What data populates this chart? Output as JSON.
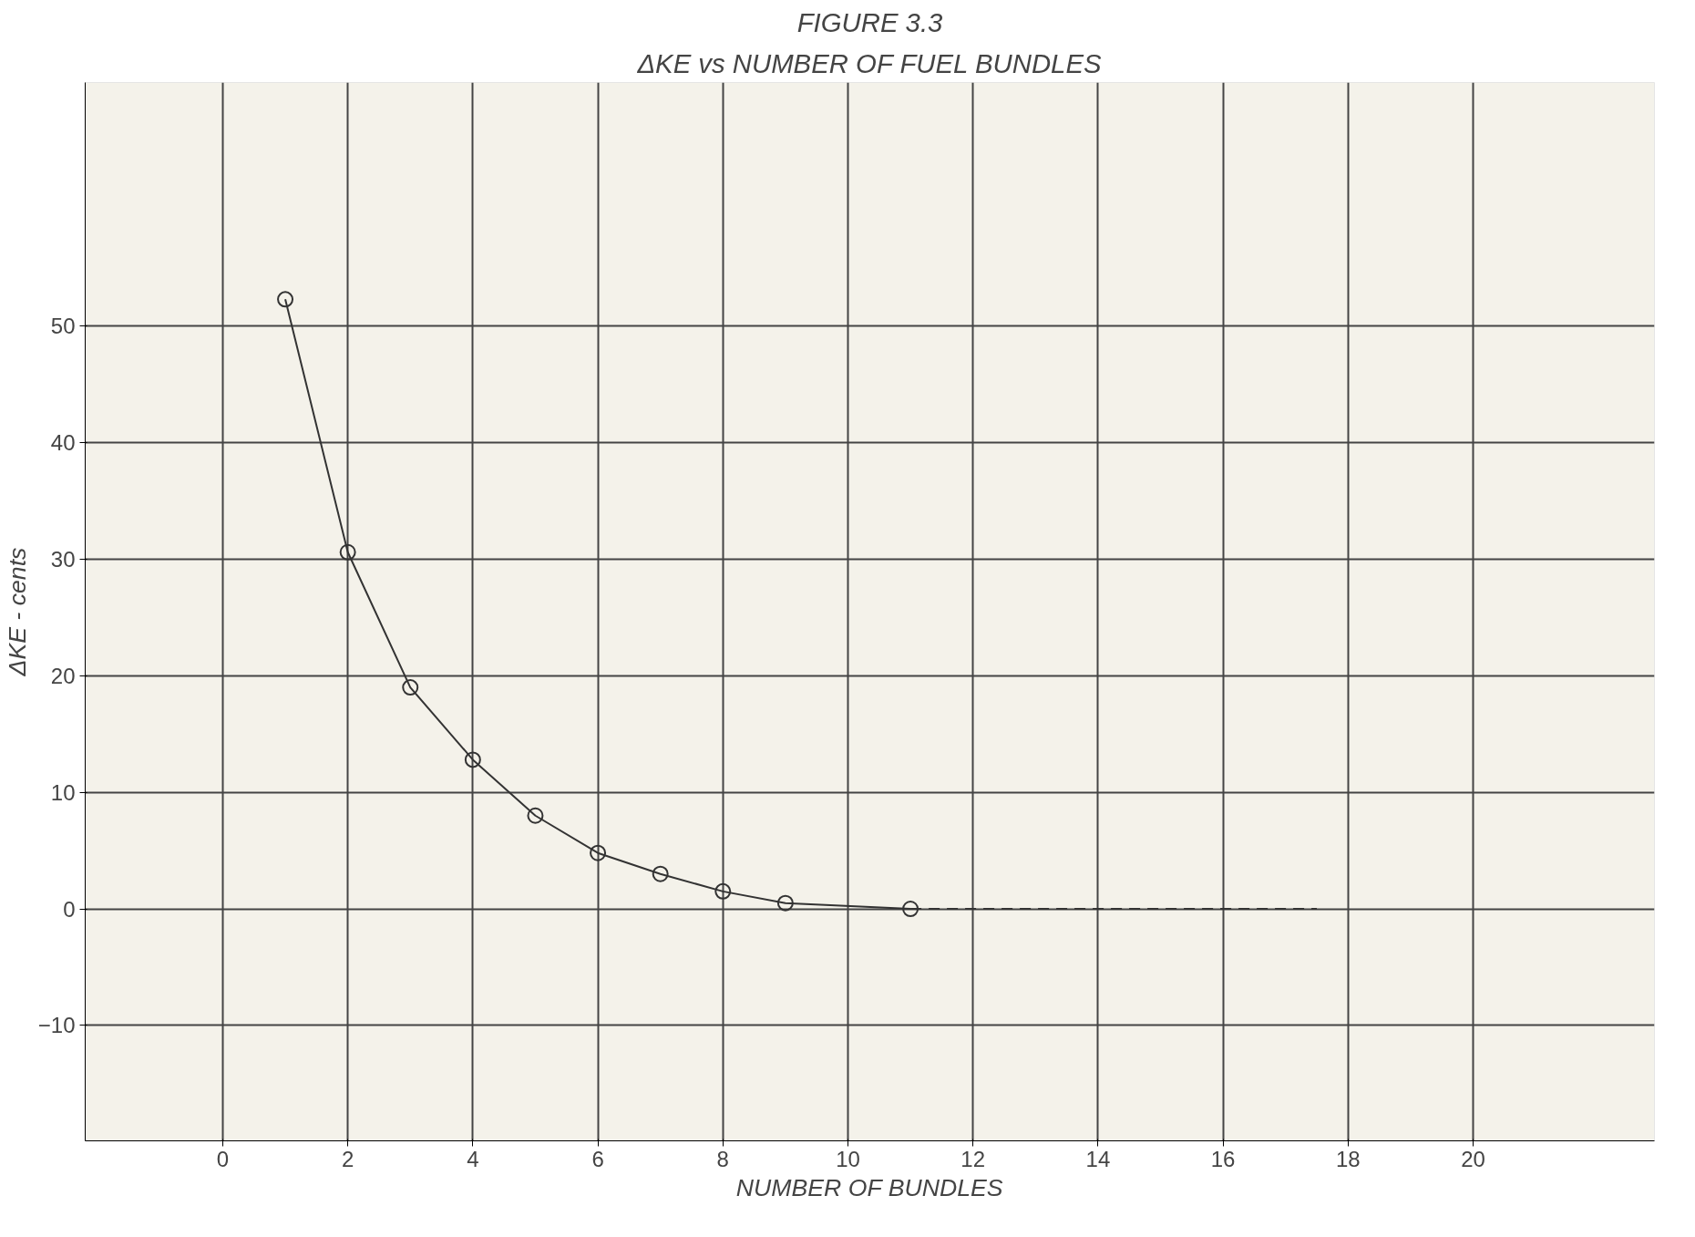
{
  "chart_data": {
    "type": "line",
    "title": "FIGURE 3.3",
    "subtitle": "ΔKE vs NUMBER OF FUEL BUNDLES",
    "xlabel": "NUMBER OF BUNDLES",
    "ylabel": "ΔKE - cents",
    "x": [
      1,
      2,
      3,
      4,
      5,
      6,
      7,
      8,
      9,
      11
    ],
    "series": [
      {
        "color": "#333333",
        "values": [
          52.3,
          30.6,
          19.0,
          12.8,
          8.0,
          4.8,
          3.0,
          1.5,
          0.5,
          0.0
        ],
        "marker": "circle",
        "line_style": "solid"
      },
      {
        "color": "#333333",
        "x": [
          11,
          17.5
        ],
        "values": [
          0,
          0
        ],
        "marker": "none",
        "line_style": "dashed"
      }
    ],
    "xlim": [
      -2.2,
      22.9
    ],
    "ylim": [
      -19.9,
      70.9
    ],
    "xticks": [
      0,
      2,
      4,
      6,
      8,
      10,
      12,
      14,
      16,
      18,
      20
    ],
    "yticks": [
      -10,
      0,
      10,
      20,
      30,
      40,
      50
    ],
    "grid": true
  }
}
